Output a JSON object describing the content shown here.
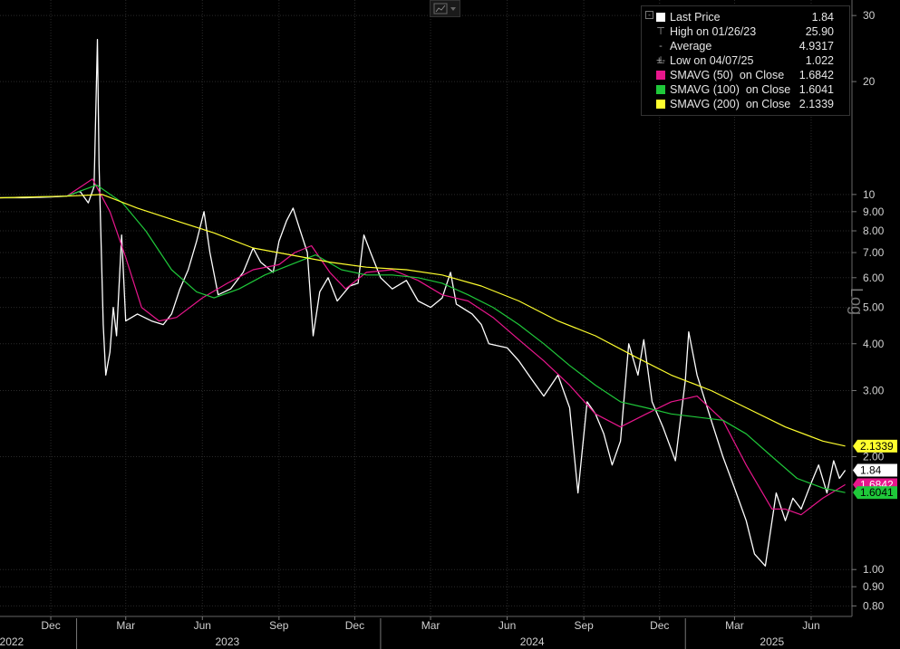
{
  "legend": {
    "items": [
      {
        "kind": "swatch",
        "color": "#ffffff",
        "label": "Last Price",
        "value": "1.84"
      },
      {
        "kind": "glyph",
        "glyph": "⊤",
        "label": "High on 01/26/23",
        "value": "25.90"
      },
      {
        "kind": "glyph",
        "glyph": "-+-",
        "label": "Average",
        "value": "4.9317"
      },
      {
        "kind": "glyph",
        "glyph": "⊥",
        "label": "Low on 04/07/25",
        "value": "1.022"
      },
      {
        "kind": "swatch",
        "color": "#e8168c",
        "label": "SMAVG (50)  on Close",
        "value": "1.6842"
      },
      {
        "kind": "swatch",
        "color": "#1fc83a",
        "label": "SMAVG (100)  on Close",
        "value": "1.6041"
      },
      {
        "kind": "swatch",
        "color": "#ffff2e",
        "label": "SMAVG (200)  on Close",
        "value": "2.1339"
      }
    ]
  },
  "axis_side_label": "Log",
  "chart_data": {
    "type": "line",
    "y_scale": "log",
    "ylim": [
      0.75,
      33
    ],
    "y_ticks": [
      {
        "v": 30,
        "label": "30"
      },
      {
        "v": 20,
        "label": "20"
      },
      {
        "v": 10,
        "label": "10"
      },
      {
        "v": 9,
        "label": "9.00"
      },
      {
        "v": 8,
        "label": "8.00"
      },
      {
        "v": 7,
        "label": "7.00"
      },
      {
        "v": 6,
        "label": "6.00"
      },
      {
        "v": 5,
        "label": "5.00"
      },
      {
        "v": 4,
        "label": "4.00"
      },
      {
        "v": 3,
        "label": "3.00"
      },
      {
        "v": 2,
        "label": "2.00"
      },
      {
        "v": 1,
        "label": "1.00"
      },
      {
        "v": 0.9,
        "label": "0.90"
      },
      {
        "v": 0.8,
        "label": "0.80"
      }
    ],
    "x_ticks": [
      {
        "date": "2022-12-01",
        "label": "Dec"
      },
      {
        "date": "2023-03-01",
        "label": "Mar"
      },
      {
        "date": "2023-06-01",
        "label": "Jun"
      },
      {
        "date": "2023-09-01",
        "label": "Sep"
      },
      {
        "date": "2023-12-01",
        "label": "Dec"
      },
      {
        "date": "2024-03-01",
        "label": "Mar"
      },
      {
        "date": "2024-06-01",
        "label": "Jun"
      },
      {
        "date": "2024-09-01",
        "label": "Sep"
      },
      {
        "date": "2024-12-01",
        "label": "Dec"
      },
      {
        "date": "2025-03-01",
        "label": "Mar"
      },
      {
        "date": "2025-06-01",
        "label": "Jun"
      }
    ],
    "x_year_labels": [
      {
        "date": "2022-10-15",
        "label": "2022"
      },
      {
        "date": "2023-07-01",
        "label": "2023"
      },
      {
        "date": "2024-07-01",
        "label": "2024"
      },
      {
        "date": "2025-04-15",
        "label": "2025"
      }
    ],
    "x_year_dividers": [
      "2023-01-01",
      "2024-01-01",
      "2025-01-01"
    ],
    "xlim": [
      "2022-10-01",
      "2025-07-20"
    ],
    "series": [
      {
        "name": "Last Price",
        "color": "#ffffff",
        "points": [
          [
            "2022-10-01",
            9.8
          ],
          [
            "2022-11-01",
            9.8
          ],
          [
            "2022-12-01",
            9.85
          ],
          [
            "2022-12-20",
            9.9
          ],
          [
            "2023-01-05",
            10.2
          ],
          [
            "2023-01-15",
            9.5
          ],
          [
            "2023-01-22",
            10.5
          ],
          [
            "2023-01-26",
            25.9
          ],
          [
            "2023-01-28",
            12.0
          ],
          [
            "2023-02-02",
            4.5
          ],
          [
            "2023-02-05",
            3.3
          ],
          [
            "2023-02-10",
            3.8
          ],
          [
            "2023-02-14",
            5.0
          ],
          [
            "2023-02-18",
            4.2
          ],
          [
            "2023-02-24",
            7.8
          ],
          [
            "2023-03-01",
            4.6
          ],
          [
            "2023-03-15",
            4.8
          ],
          [
            "2023-04-01",
            4.6
          ],
          [
            "2023-04-15",
            4.5
          ],
          [
            "2023-04-25",
            4.8
          ],
          [
            "2023-05-05",
            5.6
          ],
          [
            "2023-05-15",
            6.3
          ],
          [
            "2023-05-25",
            7.5
          ],
          [
            "2023-06-03",
            9.0
          ],
          [
            "2023-06-10",
            7.0
          ],
          [
            "2023-06-20",
            5.4
          ],
          [
            "2023-07-05",
            5.6
          ],
          [
            "2023-07-20",
            6.2
          ],
          [
            "2023-08-01",
            7.2
          ],
          [
            "2023-08-10",
            6.6
          ],
          [
            "2023-08-25",
            6.2
          ],
          [
            "2023-09-01",
            7.5
          ],
          [
            "2023-09-10",
            8.5
          ],
          [
            "2023-09-18",
            9.2
          ],
          [
            "2023-09-25",
            8.2
          ],
          [
            "2023-10-05",
            7.0
          ],
          [
            "2023-10-12",
            4.2
          ],
          [
            "2023-10-20",
            5.5
          ],
          [
            "2023-10-30",
            6.0
          ],
          [
            "2023-11-10",
            5.2
          ],
          [
            "2023-11-25",
            5.7
          ],
          [
            "2023-12-05",
            5.8
          ],
          [
            "2023-12-12",
            7.8
          ],
          [
            "2023-12-20",
            7.0
          ],
          [
            "2024-01-01",
            6.0
          ],
          [
            "2024-01-15",
            5.6
          ],
          [
            "2024-02-01",
            5.9
          ],
          [
            "2024-02-15",
            5.2
          ],
          [
            "2024-03-01",
            5.0
          ],
          [
            "2024-03-15",
            5.3
          ],
          [
            "2024-03-25",
            6.2
          ],
          [
            "2024-04-01",
            5.1
          ],
          [
            "2024-04-20",
            4.8
          ],
          [
            "2024-05-01",
            4.5
          ],
          [
            "2024-05-10",
            4.0
          ],
          [
            "2024-06-01",
            3.9
          ],
          [
            "2024-06-15",
            3.6
          ],
          [
            "2024-07-01",
            3.2
          ],
          [
            "2024-07-15",
            2.9
          ],
          [
            "2024-08-01",
            3.3
          ],
          [
            "2024-08-15",
            2.7
          ],
          [
            "2024-08-25",
            1.6
          ],
          [
            "2024-09-05",
            2.8
          ],
          [
            "2024-09-15",
            2.6
          ],
          [
            "2024-09-25",
            2.3
          ],
          [
            "2024-10-05",
            1.9
          ],
          [
            "2024-10-15",
            2.2
          ],
          [
            "2024-10-25",
            4.0
          ],
          [
            "2024-11-05",
            3.3
          ],
          [
            "2024-11-12",
            4.1
          ],
          [
            "2024-11-22",
            2.8
          ],
          [
            "2024-12-05",
            2.4
          ],
          [
            "2024-12-20",
            1.95
          ],
          [
            "2025-01-01",
            3.2
          ],
          [
            "2025-01-05",
            4.3
          ],
          [
            "2025-01-15",
            3.3
          ],
          [
            "2025-02-01",
            2.5
          ],
          [
            "2025-02-15",
            2.0
          ],
          [
            "2025-03-01",
            1.65
          ],
          [
            "2025-03-15",
            1.35
          ],
          [
            "2025-03-25",
            1.1
          ],
          [
            "2025-04-07",
            1.022
          ],
          [
            "2025-04-20",
            1.6
          ],
          [
            "2025-05-01",
            1.35
          ],
          [
            "2025-05-10",
            1.55
          ],
          [
            "2025-05-20",
            1.45
          ],
          [
            "2025-06-01",
            1.7
          ],
          [
            "2025-06-10",
            1.9
          ],
          [
            "2025-06-20",
            1.6
          ],
          [
            "2025-06-28",
            1.95
          ],
          [
            "2025-07-05",
            1.75
          ],
          [
            "2025-07-12",
            1.84
          ]
        ]
      },
      {
        "name": "SMAVG (50)  on Close",
        "color": "#e8168c",
        "points": [
          [
            "2022-10-01",
            9.8
          ],
          [
            "2022-12-20",
            9.9
          ],
          [
            "2023-01-20",
            11.0
          ],
          [
            "2023-02-10",
            9.0
          ],
          [
            "2023-03-01",
            6.8
          ],
          [
            "2023-03-20",
            5.0
          ],
          [
            "2023-04-10",
            4.6
          ],
          [
            "2023-05-01",
            4.7
          ],
          [
            "2023-06-01",
            5.3
          ],
          [
            "2023-07-01",
            5.8
          ],
          [
            "2023-08-01",
            6.3
          ],
          [
            "2023-09-01",
            6.5
          ],
          [
            "2023-09-20",
            7.0
          ],
          [
            "2023-10-10",
            7.3
          ],
          [
            "2023-11-01",
            6.2
          ],
          [
            "2023-11-20",
            5.6
          ],
          [
            "2023-12-15",
            6.2
          ],
          [
            "2024-01-15",
            6.3
          ],
          [
            "2024-02-15",
            5.9
          ],
          [
            "2024-03-15",
            5.4
          ],
          [
            "2024-04-15",
            5.2
          ],
          [
            "2024-05-15",
            4.7
          ],
          [
            "2024-06-15",
            4.1
          ],
          [
            "2024-07-15",
            3.6
          ],
          [
            "2024-08-15",
            3.1
          ],
          [
            "2024-09-15",
            2.6
          ],
          [
            "2024-10-15",
            2.4
          ],
          [
            "2024-11-15",
            2.6
          ],
          [
            "2024-12-15",
            2.8
          ],
          [
            "2025-01-15",
            2.9
          ],
          [
            "2025-02-15",
            2.5
          ],
          [
            "2025-03-15",
            1.9
          ],
          [
            "2025-04-15",
            1.45
          ],
          [
            "2025-05-01",
            1.45
          ],
          [
            "2025-05-20",
            1.4
          ],
          [
            "2025-06-15",
            1.55
          ],
          [
            "2025-07-12",
            1.6842
          ]
        ]
      },
      {
        "name": "SMAVG (100)  on Close",
        "color": "#1fc83a",
        "points": [
          [
            "2022-10-01",
            9.8
          ],
          [
            "2022-12-20",
            9.9
          ],
          [
            "2023-01-25",
            10.6
          ],
          [
            "2023-02-25",
            9.5
          ],
          [
            "2023-03-25",
            8.0
          ],
          [
            "2023-04-25",
            6.3
          ],
          [
            "2023-05-25",
            5.5
          ],
          [
            "2023-06-15",
            5.3
          ],
          [
            "2023-07-15",
            5.6
          ],
          [
            "2023-08-15",
            6.1
          ],
          [
            "2023-09-15",
            6.5
          ],
          [
            "2023-10-15",
            6.9
          ],
          [
            "2023-11-15",
            6.3
          ],
          [
            "2023-12-15",
            6.1
          ],
          [
            "2024-01-15",
            6.1
          ],
          [
            "2024-02-15",
            6.0
          ],
          [
            "2024-03-15",
            5.8
          ],
          [
            "2024-04-15",
            5.4
          ],
          [
            "2024-05-15",
            5.0
          ],
          [
            "2024-06-15",
            4.5
          ],
          [
            "2024-07-15",
            4.0
          ],
          [
            "2024-08-15",
            3.5
          ],
          [
            "2024-09-15",
            3.1
          ],
          [
            "2024-10-15",
            2.8
          ],
          [
            "2024-11-15",
            2.7
          ],
          [
            "2024-12-15",
            2.6
          ],
          [
            "2025-01-15",
            2.55
          ],
          [
            "2025-02-15",
            2.5
          ],
          [
            "2025-03-15",
            2.3
          ],
          [
            "2025-04-15",
            2.0
          ],
          [
            "2025-05-15",
            1.75
          ],
          [
            "2025-06-15",
            1.65
          ],
          [
            "2025-07-12",
            1.6041
          ]
        ]
      },
      {
        "name": "SMAVG (200)  on Close",
        "color": "#ffff2e",
        "points": [
          [
            "2022-10-01",
            9.8
          ],
          [
            "2022-12-20",
            9.9
          ],
          [
            "2023-02-01",
            10.0
          ],
          [
            "2023-03-15",
            9.2
          ],
          [
            "2023-05-01",
            8.5
          ],
          [
            "2023-06-15",
            7.9
          ],
          [
            "2023-08-01",
            7.2
          ],
          [
            "2023-09-15",
            6.9
          ],
          [
            "2023-11-01",
            6.6
          ],
          [
            "2023-12-15",
            6.4
          ],
          [
            "2024-02-01",
            6.3
          ],
          [
            "2024-03-15",
            6.1
          ],
          [
            "2024-05-01",
            5.7
          ],
          [
            "2024-06-15",
            5.2
          ],
          [
            "2024-08-01",
            4.6
          ],
          [
            "2024-09-15",
            4.2
          ],
          [
            "2024-11-01",
            3.7
          ],
          [
            "2024-12-15",
            3.3
          ],
          [
            "2025-02-01",
            3.0
          ],
          [
            "2025-03-15",
            2.7
          ],
          [
            "2025-05-01",
            2.4
          ],
          [
            "2025-06-15",
            2.2
          ],
          [
            "2025-07-12",
            2.1339
          ]
        ]
      }
    ],
    "value_tags": [
      {
        "value": 2.1339,
        "label": "2.1339",
        "bg": "#ffff2e",
        "fg": "#000000"
      },
      {
        "value": 1.84,
        "label": "1.84",
        "bg": "#ffffff",
        "fg": "#000000"
      },
      {
        "value": 1.6842,
        "label": "1.6842",
        "bg": "#e8168c",
        "fg": "#ffffff"
      },
      {
        "value": 1.6041,
        "label": "1.6041",
        "bg": "#1fc83a",
        "fg": "#000000"
      }
    ]
  }
}
